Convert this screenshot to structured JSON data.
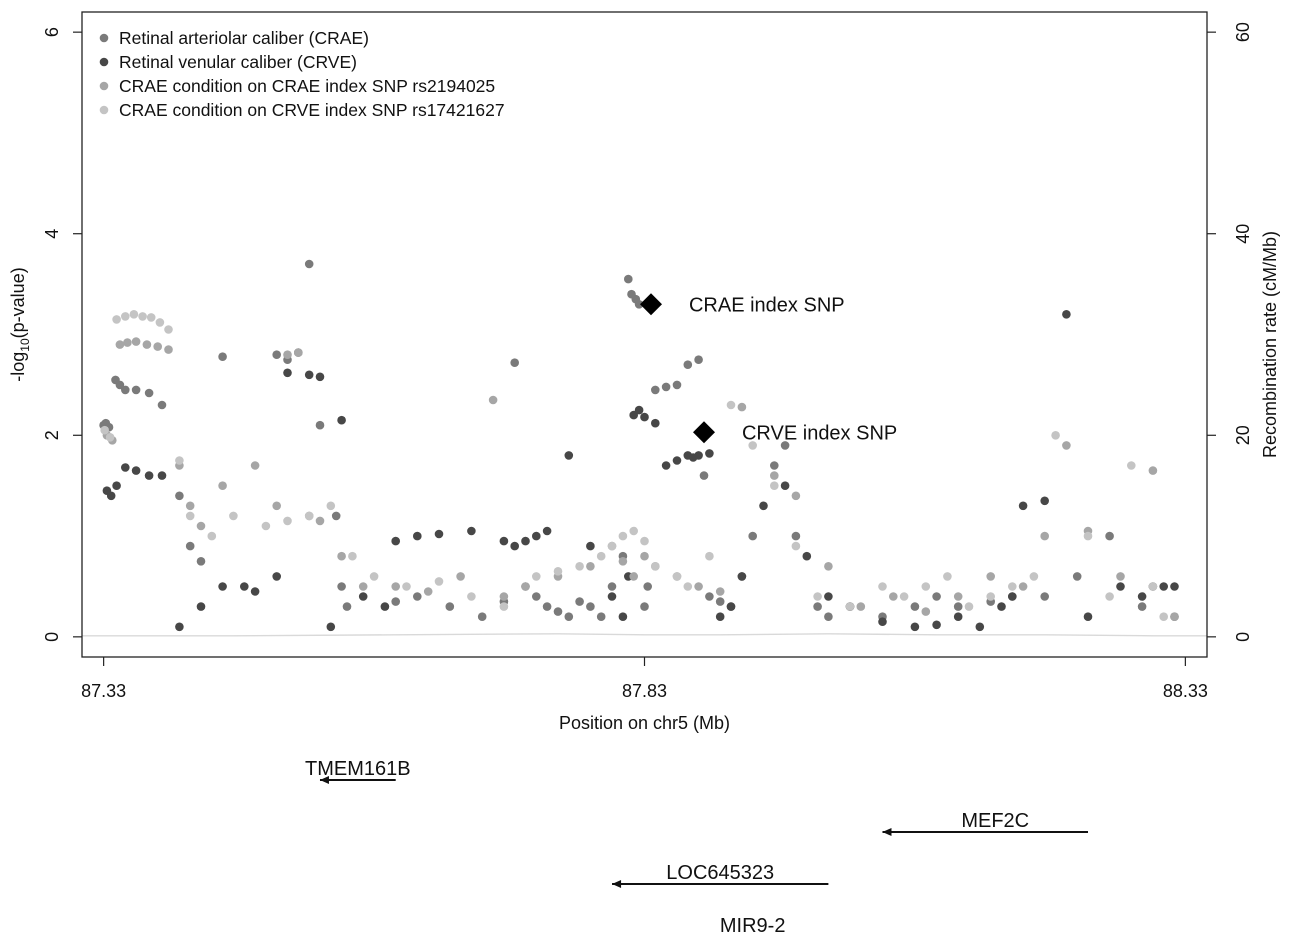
{
  "chart_data": {
    "type": "scatter",
    "title": "",
    "xlabel": "Position on chr5 (Mb)",
    "ylabel_left": "-log10(p-value)",
    "ylabel_left_main": "-log",
    "ylabel_left_sub": "10",
    "ylabel_left_tail": "(p-value)",
    "ylabel_right": "Recombination rate (cM/Mb)",
    "xlim": [
      87.31,
      88.35
    ],
    "ylim_left": [
      -0.2,
      6.2
    ],
    "ylim_right": [
      -2,
      62
    ],
    "x_ticks": [
      "87.33",
      "87.83",
      "88.33"
    ],
    "x_tick_values": [
      87.33,
      87.83,
      88.33
    ],
    "y_left_ticks": [
      "0",
      "2",
      "4",
      "6"
    ],
    "y_left_tick_values": [
      0,
      2,
      4,
      6
    ],
    "y_right_ticks": [
      "0",
      "20",
      "40",
      "60"
    ],
    "y_right_tick_values": [
      0,
      20,
      40,
      60
    ],
    "grid": false,
    "legend_position": "top-left",
    "colors": {
      "CRAE": "#7a7a7a",
      "CRVE": "#474747",
      "CRAE_cond_CRAE": "#a6a6a6",
      "CRAE_cond_CRVE": "#c4c4c4",
      "recomb": "#d9d9d9",
      "index": "#000000"
    },
    "series": [
      {
        "name": "Retinal arteriolar caliber (CRAE)",
        "key": "CRAE",
        "x": [
          87.33,
          87.332,
          87.335,
          87.341,
          87.345,
          87.35,
          87.36,
          87.372,
          87.384,
          87.4,
          87.41,
          87.42,
          87.44,
          87.49,
          87.5,
          87.51,
          87.52,
          87.53,
          87.545,
          87.55,
          87.555,
          87.6,
          87.62,
          87.65,
          87.68,
          87.7,
          87.71,
          87.72,
          87.73,
          87.74,
          87.75,
          87.76,
          87.77,
          87.78,
          87.79,
          87.8,
          87.81,
          87.815,
          87.818,
          87.822,
          87.825,
          87.83,
          87.833,
          87.84,
          87.85,
          87.86,
          87.87,
          87.88,
          87.885,
          87.89,
          87.9,
          87.91,
          87.92,
          87.93,
          87.95,
          87.96,
          87.97,
          87.99,
          88.0,
          88.02,
          88.05,
          88.08,
          88.1,
          88.12,
          88.15,
          88.17,
          88.2,
          88.23,
          88.26,
          88.29,
          88.32
        ],
        "y": [
          2.1,
          2.12,
          2.08,
          2.55,
          2.5,
          2.45,
          2.45,
          2.42,
          2.3,
          1.4,
          0.9,
          0.75,
          2.78,
          2.8,
          2.75,
          2.82,
          3.7,
          2.1,
          1.2,
          0.5,
          0.3,
          0.35,
          0.4,
          0.3,
          0.2,
          0.35,
          2.72,
          0.5,
          0.4,
          0.3,
          0.25,
          0.2,
          0.35,
          0.3,
          0.2,
          0.5,
          0.8,
          3.55,
          3.4,
          3.35,
          3.3,
          0.3,
          0.5,
          2.45,
          2.48,
          2.5,
          2.7,
          2.75,
          1.6,
          0.4,
          0.35,
          0.3,
          0.6,
          1.0,
          1.7,
          1.9,
          1.0,
          0.3,
          0.2,
          0.3,
          0.2,
          0.3,
          0.4,
          0.3,
          0.35,
          0.4,
          0.4,
          0.6,
          1.0,
          0.3,
          0.2
        ]
      },
      {
        "name": "Retinal venular caliber (CRVE)",
        "key": "CRVE",
        "x": [
          87.333,
          87.337,
          87.342,
          87.35,
          87.36,
          87.372,
          87.384,
          87.4,
          87.42,
          87.44,
          87.46,
          87.47,
          87.49,
          87.5,
          87.52,
          87.53,
          87.54,
          87.55,
          87.57,
          87.59,
          87.6,
          87.62,
          87.64,
          87.67,
          87.7,
          87.71,
          87.72,
          87.73,
          87.74,
          87.76,
          87.78,
          87.8,
          87.81,
          87.815,
          87.82,
          87.825,
          87.83,
          87.84,
          87.85,
          87.86,
          87.87,
          87.875,
          87.88,
          87.89,
          87.9,
          87.91,
          87.92,
          87.94,
          87.96,
          87.98,
          88.0,
          88.02,
          88.05,
          88.08,
          88.1,
          88.12,
          88.14,
          88.16,
          88.17,
          88.18,
          88.2,
          88.22,
          88.24,
          88.27,
          88.29,
          88.3,
          88.31,
          88.32
        ],
        "y": [
          1.45,
          1.4,
          1.5,
          1.68,
          1.65,
          1.6,
          1.6,
          0.1,
          0.3,
          0.5,
          0.5,
          0.45,
          0.6,
          2.62,
          2.6,
          2.58,
          0.1,
          2.15,
          0.4,
          0.3,
          0.95,
          1.0,
          1.02,
          1.05,
          0.95,
          0.9,
          0.95,
          1.0,
          1.05,
          1.8,
          0.9,
          0.4,
          0.2,
          0.6,
          2.2,
          2.25,
          2.18,
          2.12,
          1.7,
          1.75,
          1.8,
          1.78,
          1.8,
          1.82,
          0.2,
          0.3,
          0.6,
          1.3,
          1.5,
          0.8,
          0.4,
          0.3,
          0.15,
          0.1,
          0.12,
          0.2,
          0.1,
          0.3,
          0.4,
          1.3,
          1.35,
          3.2,
          0.2,
          0.5,
          0.4,
          0.5,
          0.5,
          0.5
        ]
      },
      {
        "name": "CRAE condition on CRAE index SNP rs2194025",
        "key": "CRAE_cond_CRAE",
        "x": [
          87.333,
          87.338,
          87.345,
          87.352,
          87.36,
          87.37,
          87.38,
          87.39,
          87.4,
          87.41,
          87.42,
          87.44,
          87.47,
          87.49,
          87.5,
          87.51,
          87.52,
          87.53,
          87.55,
          87.57,
          87.6,
          87.63,
          87.66,
          87.69,
          87.7,
          87.72,
          87.75,
          87.78,
          87.8,
          87.81,
          87.82,
          87.83,
          87.84,
          87.86,
          87.88,
          87.9,
          87.92,
          87.95,
          87.97,
          88.0,
          88.03,
          88.06,
          88.09,
          88.12,
          88.15,
          88.18,
          88.2,
          88.22,
          88.24,
          88.27,
          88.3,
          88.32
        ],
        "y": [
          2.0,
          1.95,
          2.9,
          2.92,
          2.93,
          2.9,
          2.88,
          2.85,
          1.7,
          1.3,
          1.1,
          1.5,
          1.7,
          1.3,
          2.8,
          2.82,
          1.2,
          1.15,
          0.8,
          0.5,
          0.5,
          0.45,
          0.6,
          2.35,
          0.4,
          0.5,
          0.6,
          0.7,
          0.9,
          0.75,
          0.6,
          0.8,
          0.7,
          0.6,
          0.5,
          0.45,
          2.28,
          1.6,
          1.4,
          0.7,
          0.3,
          0.4,
          0.25,
          0.4,
          0.6,
          0.5,
          1.0,
          1.9,
          1.05,
          0.6,
          1.65,
          0.2
        ]
      },
      {
        "name": "CRAE condition on CRVE index SNP rs17421627",
        "key": "CRAE_cond_CRVE",
        "x": [
          87.331,
          87.336,
          87.342,
          87.35,
          87.358,
          87.366,
          87.374,
          87.382,
          87.39,
          87.4,
          87.41,
          87.43,
          87.45,
          87.48,
          87.5,
          87.52,
          87.54,
          87.56,
          87.58,
          87.61,
          87.64,
          87.67,
          87.7,
          87.73,
          87.75,
          87.77,
          87.79,
          87.8,
          87.81,
          87.82,
          87.83,
          87.84,
          87.86,
          87.87,
          87.89,
          87.91,
          87.93,
          87.95,
          87.97,
          87.99,
          88.02,
          88.05,
          88.07,
          88.09,
          88.11,
          88.13,
          88.15,
          88.17,
          88.19,
          88.21,
          88.24,
          88.26,
          88.28,
          88.3,
          88.31
        ],
        "y": [
          2.05,
          1.98,
          3.15,
          3.18,
          3.2,
          3.18,
          3.17,
          3.12,
          3.05,
          1.75,
          1.2,
          1.0,
          1.2,
          1.1,
          1.15,
          1.2,
          1.3,
          0.8,
          0.6,
          0.5,
          0.55,
          0.4,
          0.3,
          0.6,
          0.65,
          0.7,
          0.8,
          0.9,
          1.0,
          1.05,
          0.95,
          0.7,
          0.6,
          0.5,
          0.8,
          2.3,
          1.9,
          1.5,
          0.9,
          0.4,
          0.3,
          0.5,
          0.4,
          0.5,
          0.6,
          0.3,
          0.4,
          0.5,
          0.6,
          2.0,
          1.0,
          0.4,
          1.7,
          0.5,
          0.2
        ]
      }
    ],
    "recombination": {
      "x": [
        87.31,
        87.45,
        87.6,
        87.75,
        87.83,
        87.9,
        88.0,
        88.1,
        88.2,
        88.3,
        88.35
      ],
      "y": [
        0.1,
        0.1,
        0.2,
        0.3,
        0.2,
        0.2,
        0.3,
        0.2,
        0.2,
        0.1,
        0.1
      ]
    },
    "index_snps": [
      {
        "label": "CRAE index SNP",
        "x": 87.836,
        "y": 3.3
      },
      {
        "label": "CRVE index SNP",
        "x": 87.885,
        "y": 2.03
      }
    ],
    "genes": [
      {
        "name": "TMEM161B",
        "start": 87.53,
        "end": 87.6,
        "direction": "left",
        "row": 0
      },
      {
        "name": "MEF2C",
        "start": 88.05,
        "end": 88.24,
        "direction": "left",
        "row": 1
      },
      {
        "name": "LOC645323",
        "start": 87.8,
        "end": 88.0,
        "direction": "left",
        "row": 2
      },
      {
        "name": "MIR9-2",
        "start": 87.93,
        "end": 87.93,
        "direction": "none",
        "row": 3
      }
    ]
  }
}
